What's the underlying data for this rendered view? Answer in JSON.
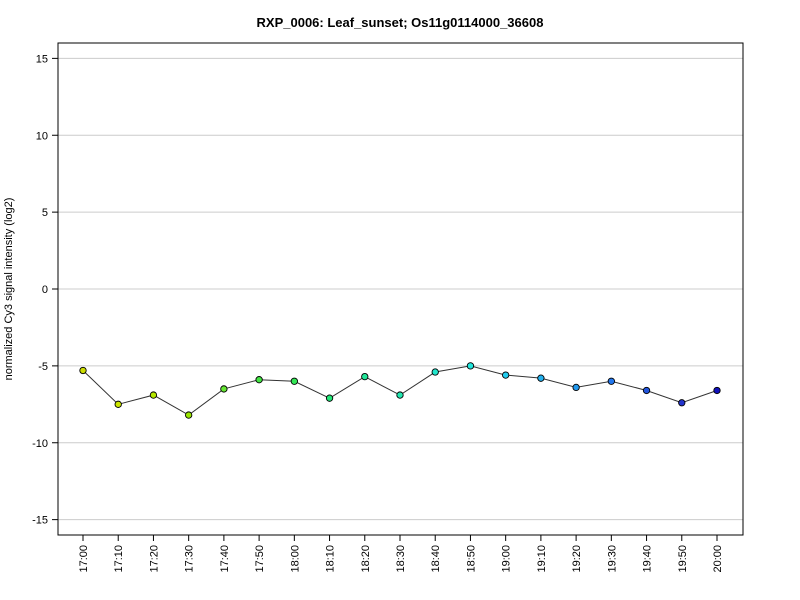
{
  "chart_data": {
    "type": "line",
    "title": "RXP_0006: Leaf_sunset; Os11g0114000_36608",
    "xlabel": "",
    "ylabel": "normalized Cy3 signal intensity (log2)",
    "ylim": [
      -16,
      16
    ],
    "yticks": [
      "-15",
      "-10",
      "-5",
      "0",
      "5",
      "10",
      "15"
    ],
    "grid": "horizontal",
    "categories": [
      "17:00",
      "17:10",
      "17:20",
      "17:30",
      "17:40",
      "17:50",
      "18:00",
      "18:10",
      "18:20",
      "18:30",
      "18:40",
      "18:50",
      "19:00",
      "19:10",
      "19:20",
      "19:30",
      "19:40",
      "19:50",
      "20:00"
    ],
    "series": [
      {
        "values": [
          -5.3,
          -7.5,
          -6.9,
          -8.2,
          -6.5,
          -5.9,
          -6.0,
          -7.1,
          -5.7,
          -6.9,
          -5.4,
          -5.0,
          -5.6,
          -5.8,
          -6.4,
          -6.0,
          -6.6,
          -7.4,
          -6.6
        ],
        "colors": [
          "#ccdd00",
          "#cce600",
          "#b4e600",
          "#99e600",
          "#66e633",
          "#44e644",
          "#33e655",
          "#22e677",
          "#22e699",
          "#22e6b0",
          "#22e6cc",
          "#22e6dd",
          "#22ccee",
          "#22b0ee",
          "#2299ee",
          "#2277ee",
          "#2255dd",
          "#2233cc",
          "#1111bb"
        ]
      }
    ]
  }
}
